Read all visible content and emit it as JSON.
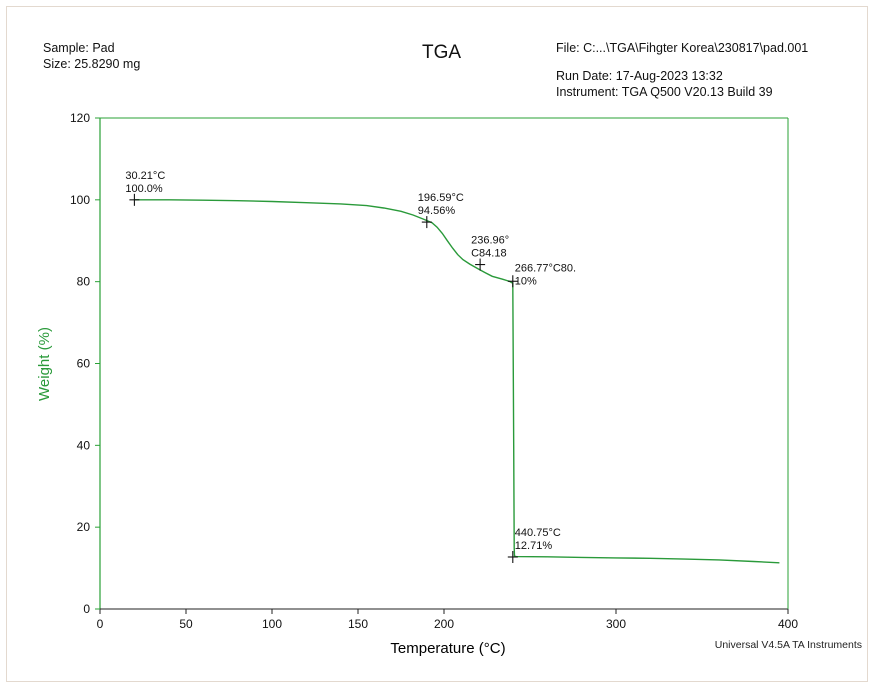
{
  "header": {
    "sample": "Sample: Pad",
    "size": "Size:  25.8290 mg",
    "title": "TGA",
    "file": "File: C:...\\TGA\\Fihgter Korea\\230817\\pad.001",
    "run_date": "Run Date: 17-Aug-2023 13:32",
    "instrument": "Instrument: TGA Q500 V20.13 Build 39"
  },
  "footer": {
    "software": "Universal V4.5A TA Instruments"
  },
  "colors": {
    "curve": "#2a9a3a",
    "axis_left": "#2aa136",
    "axis_bottom": "#222222",
    "ylabel": "#2a9a3a"
  },
  "chart_data": {
    "type": "line",
    "title": "TGA",
    "xlabel": "Temperature (°C)",
    "ylabel": "Weight (%)",
    "xlim": [
      0,
      400
    ],
    "ylim": [
      0,
      120
    ],
    "xticks": [
      0,
      50,
      100,
      150,
      200,
      300,
      400
    ],
    "xtick_labels": [
      "0",
      "50",
      "100",
      "150",
      "200",
      "300",
      "400"
    ],
    "yticks": [
      0,
      20,
      40,
      60,
      80,
      100,
      120
    ],
    "ytick_labels": [
      "0",
      "20",
      "40",
      "60",
      "80",
      "100",
      "120"
    ],
    "grid": false,
    "series": [
      {
        "x": [
          20,
          40,
          60,
          80,
          100,
          120,
          140,
          155,
          165,
          175,
          182,
          188,
          193,
          196,
          199,
          202,
          205,
          208,
          211,
          215,
          220,
          224,
          228,
          234,
          238,
          240,
          240.5,
          240.8,
          241,
          242,
          260,
          280,
          300,
          320,
          340,
          360,
          380,
          395
        ],
        "y": [
          100,
          100,
          99.9,
          99.8,
          99.6,
          99.3,
          99.0,
          98.6,
          98.0,
          97.2,
          96.3,
          95.3,
          94.4,
          93.3,
          91.8,
          90.0,
          88.2,
          86.6,
          85.4,
          84.3,
          83.1,
          82.2,
          81.3,
          80.6,
          80.1,
          79.6,
          40,
          15,
          12.9,
          12.8,
          12.75,
          12.6,
          12.5,
          12.4,
          12.2,
          12.0,
          11.6,
          11.3
        ]
      }
    ],
    "annotations": [
      {
        "x": 20,
        "y": 100.0,
        "lines": [
          "30.21°C",
          "100.0%"
        ]
      },
      {
        "x": 190,
        "y": 94.56,
        "lines": [
          "196.59°C",
          "94.56%"
        ]
      },
      {
        "x": 221,
        "y": 84.18,
        "lines": [
          "236.96°",
          "C84.18"
        ]
      },
      {
        "x": 240,
        "y": 80.1,
        "lines": [
          "266.77°C80.",
          "10%"
        ]
      },
      {
        "x": 240,
        "y": 12.71,
        "lines": [
          "440.75°C",
          "12.71%"
        ]
      }
    ]
  }
}
